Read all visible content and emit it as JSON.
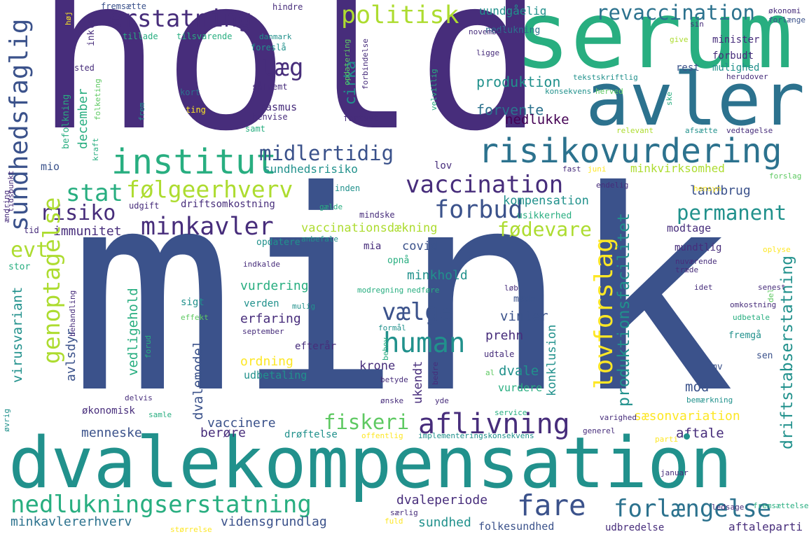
{
  "palette": {
    "c0": "#440154",
    "c1": "#472d7b",
    "c2": "#3b528b",
    "c3": "#2c728e",
    "c4": "#21918c",
    "c5": "#28ae80",
    "c6": "#5ec962",
    "c7": "#addc30",
    "c8": "#fde725"
  },
  "words": {
    "mink": "mink",
    "hold": "hold",
    "dvalekompensation": "dvalekompensation",
    "serum": "serum",
    "avler": "avler",
    "risikovurdering": "risikovurdering",
    "institut": "institut",
    "nedlukningserstatning": "nedlukningserstatning",
    "fare": "fare",
    "forlaengelse": "forlængelse",
    "aflivning": "aflivning",
    "minkavler": "minkavler",
    "vaccination": "vaccination",
    "folgeerhverv": "følgeerhverv",
    "erstatning": "erstatning",
    "politisk": "politisk",
    "revaccination": "revaccination",
    "human": "human",
    "forbud": "forbud",
    "sundhedsfaglig": "sundhedsfaglig",
    "lovforslag": "lovforslag",
    "laeg": "læg",
    "midlertidig": "midlertidig",
    "stat": "stat",
    "risiko": "risiko",
    "permanent": "permanent",
    "vaelge": "vælge",
    "fodevare": "fødevare",
    "fiskeri": "fiskeri",
    "genoptagelse": "genoptagelse",
    "evt": "evt",
    "produktionsfacilitet": "produktionsfacilitet",
    "driftstabserstatning": "driftstabserstatning",
    "produktion": "produktion",
    "forvente": "forvente",
    "cirka": "cirka",
    "december": "december",
    "minkvirksomhed": "minkvirksomhed",
    "landbrug": "landbrug",
    "kompensation": "kompensation",
    "vaccinationsdaekning": "vaccinationsdækning",
    "immunitet": "immunitet",
    "sundhedsrisiko": "sundhedsrisiko",
    "minkhold": "minkhold",
    "vurdering": "vurdering",
    "erfaring": "erfaring",
    "ordning": "ordning",
    "dvalemodel": "dvalemodel",
    "vaccinere": "vaccinere",
    "menneske": "menneske",
    "berore": "berøre",
    "dvaleperiode": "dvaleperiode",
    "sundhed": "sundhed",
    "minkavlererhverv": "minkavlererhverv",
    "vidensgrundlag": "vidensgrundlag",
    "folkesundhed": "folkesundhed",
    "udbredelse": "udbredelse",
    "aftaleparti": "aftaleparti",
    "saesonvariation": "sæsonvariation",
    "aftale": "aftale",
    "mod": "mod",
    "dvale": "dvale",
    "vinter": "vinter",
    "prehn": "prehn",
    "krone": "krone",
    "covid": "covid",
    "udbetaling": "udbetaling",
    "virusvariant": "virusvariant",
    "vedligehold": "vedligehold",
    "avlsdyr": "avlsdyr",
    "nedlukke": "nedlukke",
    "uundgaaelig": "uundgåelig",
    "nedlukning": "nedlukning",
    "minister": "minister",
    "forbudt": "forbudt",
    "mulighed": "mulighed",
    "rest": "rest",
    "rasmus": "rasmus",
    "mio": "mio",
    "modtage": "modtage",
    "mundtlig": "mundtlig",
    "usikkerhed": "usikkerhed",
    "driftsomkostning": "driftsomkostning",
    "efteraar": "efterår",
    "sigt": "sigt",
    "verden": "verden",
    "okonomisk": "økonomisk",
    "draftelse": "drøftelse",
    "mia": "mia",
    "opnaa": "opnå",
    "opdatere": "opdatere",
    "fremgaa": "fremgå",
    "sen": "sen",
    "mv": "mv",
    "konklusion": "konklusion",
    "ukendt": "ukendt",
    "vurdere": "vurdere",
    "mode": "møde",
    "udtale": "udtale",
    "lov": "lov",
    "stor": "stor",
    "ting": "ting",
    "kort": "kort",
    "sted": "sted",
    "inkle": "inkle",
    "tillade": "tillade",
    "tilsvarende": "tilsvarende",
    "danmark": "danmark",
    "forslaa": "foreslå",
    "fremsaette": "fremsætte",
    "hindre": "hindre",
    "saafremt": "såfremt",
    "henvise": "henvise",
    "fortsat": "fortsat",
    "samt": "samt",
    "befolkning": "befolkning",
    "folketing": "folketing",
    "kraft": "kraft",
    "frem": "frem",
    "tidspunkt": "tidspunkt",
    "aendring": "ændring",
    "tid": "tid",
    "udgift": "udgift",
    "inden": "inden",
    "mindske": "mindske",
    "gaelde": "gælde",
    "anbefale": "anbefale",
    "indkalde": "indkalde",
    "modregning": "modregning",
    "nedfore": "nedføre",
    "mulig": "mulig",
    "september": "september",
    "effekt": "effekt",
    "behandling": "behandling",
    "forud": "forud",
    "formaal": "formål",
    "behov": "behov",
    "al": "al",
    "betyde": "betyde",
    "bedre": "bedre",
    "delvis": "delvis",
    "samle": "samle",
    "onske": "ønske",
    "yde": "yde",
    "service": "service",
    "ovrig": "øvrig",
    "offentlig": "offentlig",
    "implementeringskonsekvens": "implementeringskonsekvens",
    "generel": "generel",
    "varighed": "varighed",
    "parti": "parti",
    "januar": "januar",
    "ledsage": "ledsage",
    "fremsaettelse": "fremsættelse",
    "saerlig": "særlig",
    "fuld": "fuld",
    "storrelse": "størrelse",
    "bemaerkning": "bemærkning",
    "omkostning": "omkostning",
    "udbetale": "udbetale",
    "senest": "senest",
    "idet": "idet",
    "nuvaerende": "nuværende",
    "traede": "træde",
    "loeb": "løb",
    "del": "del",
    "oplyse": "oplyse",
    "hensyn": "hensyn",
    "endelig": "endelig",
    "fast": "fast",
    "juni": "juni",
    "forslag": "forslag",
    "relevant": "relevant",
    "afsaette": "afsætte",
    "vedtagelse": "vedtagelse",
    "herudover": "herudover",
    "ske": "ske",
    "konsekvens": "konsekvens",
    "herved": "herved",
    "tekstskriftlig": "tekstskriftlig",
    "ligge": "ligge",
    "november": "november",
    "give": "give",
    "sin": "sin",
    "okonomi": "økonomi",
    "forlaenge": "forlænge",
    "velvillig": "velvillig",
    "opdatering": "opdatering",
    "forbindelse": "forbindelse",
    "haj": "høj"
  }
}
